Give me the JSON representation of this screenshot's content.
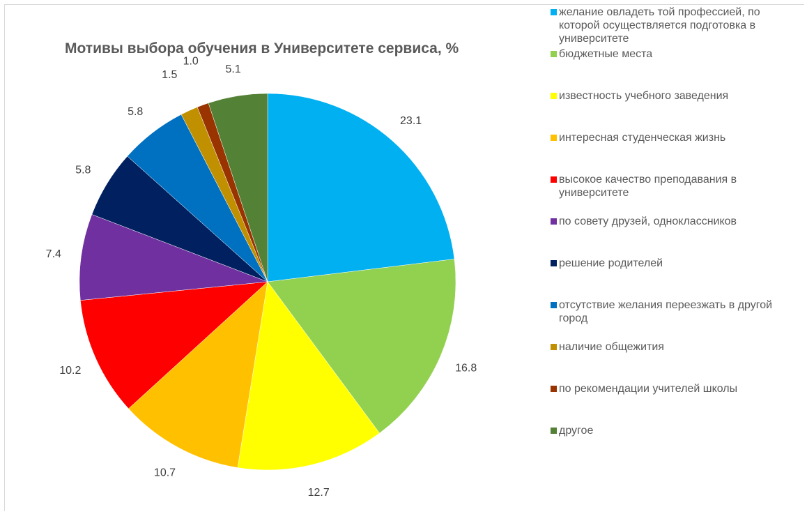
{
  "chart_data": {
    "type": "pie",
    "title": "Мотивы выбора обучения в Университете сервиса, %",
    "legend_position": "right",
    "slices": [
      {
        "label": "желание овладеть той профессией, по которой осуществляется подготовка в университете",
        "value": 23.1,
        "value_label": "23.1",
        "color": "#00B0F0"
      },
      {
        "label": "бюджетные места",
        "value": 16.8,
        "value_label": "16.8",
        "color": "#92D050"
      },
      {
        "label": "известность учебного заведения",
        "value": 12.7,
        "value_label": "12.7",
        "color": "#FFFF00"
      },
      {
        "label": "интересная студенческая жизнь",
        "value": 10.7,
        "value_label": "10.7",
        "color": "#FFC000"
      },
      {
        "label": "высокое качество преподавания в университете",
        "value": 10.2,
        "value_label": "10.2",
        "color": "#FF0000"
      },
      {
        "label": "по совету друзей, одноклассников",
        "value": 7.4,
        "value_label": "7.4",
        "color": "#7030A0"
      },
      {
        "label": "решение родителей",
        "value": 5.8,
        "value_label": "5.8",
        "color": "#002060"
      },
      {
        "label": "отсутствие желания переезжать в другой город",
        "value": 5.8,
        "value_label": "5.8",
        "color": "#0070C0"
      },
      {
        "label": "наличие общежития",
        "value": 1.5,
        "value_label": "1.5",
        "color": "#C09000"
      },
      {
        "label": "по рекомендации учителей школы",
        "value": 1.0,
        "value_label": "1.0",
        "color": "#993300"
      },
      {
        "label": "другое",
        "value": 5.1,
        "value_label": "5.1",
        "color": "#538135"
      }
    ]
  }
}
